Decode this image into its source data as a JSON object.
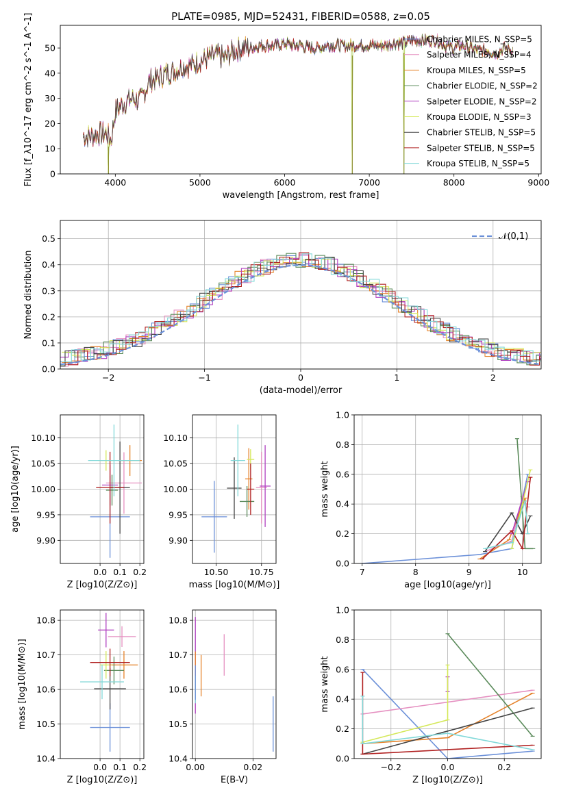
{
  "title": "PLATE=0985, MJD=52431, FIBERID=0588, z=0.05",
  "chart_data": [
    {
      "type": "line",
      "panel": "spectrum",
      "xlabel": "wavelength [Angstrom, rest frame]",
      "ylabel": "Flux [f_λ10^-17 erg cm^-2 s^-1 A^-1]",
      "xlim": [
        3350,
        9030
      ],
      "ylim": [
        0,
        59
      ],
      "xticks": [
        4000,
        5000,
        6000,
        7000,
        8000,
        9000
      ],
      "yticks": [
        0,
        10,
        20,
        30,
        40,
        50
      ],
      "grid": false,
      "legend_position": "right",
      "legend": [
        "Chabrier MILES, N_SSP=5",
        "Salpeter MILES, N_SSP=4",
        "Kroupa MILES, N_SSP=5",
        "Chabrier ELODIE, N_SSP=2",
        "Salpeter ELODIE, N_SSP=2",
        "Kroupa ELODIE, N_SSP=3",
        "Chabrier STELIB, N_SSP=5",
        "Salpeter STELIB, N_SSP=5",
        "Kroupa STELIB, N_SSP=5"
      ],
      "colors": [
        "#6a8fd8",
        "#e58fc0",
        "#e5822a",
        "#5a8a5a",
        "#b040c0",
        "#d4e858",
        "#444444",
        "#b02020",
        "#80d8d8"
      ],
      "continuum": [
        [
          3620,
          15
        ],
        [
          3700,
          15
        ],
        [
          3800,
          16
        ],
        [
          3900,
          16
        ],
        [
          3950,
          13
        ],
        [
          4000,
          25
        ],
        [
          4100,
          28
        ],
        [
          4200,
          30
        ],
        [
          4300,
          29
        ],
        [
          4400,
          37
        ],
        [
          4500,
          38
        ],
        [
          4600,
          40
        ],
        [
          4700,
          41
        ],
        [
          4800,
          43
        ],
        [
          4900,
          43
        ],
        [
          5000,
          45
        ],
        [
          5100,
          46
        ],
        [
          5200,
          47
        ],
        [
          5300,
          46
        ],
        [
          5400,
          49
        ],
        [
          5500,
          50
        ],
        [
          5600,
          50
        ],
        [
          5700,
          51
        ],
        [
          5800,
          51
        ],
        [
          5900,
          51
        ],
        [
          6000,
          52
        ],
        [
          6100,
          51
        ],
        [
          6200,
          51
        ],
        [
          6300,
          50
        ],
        [
          6400,
          50
        ],
        [
          6500,
          51
        ],
        [
          6600,
          51
        ],
        [
          6700,
          51
        ],
        [
          6800,
          51
        ],
        [
          6900,
          51
        ],
        [
          7000,
          51
        ],
        [
          7100,
          51
        ],
        [
          7200,
          51
        ],
        [
          7300,
          52
        ],
        [
          7400,
          52
        ],
        [
          7500,
          53
        ],
        [
          7600,
          53
        ],
        [
          7700,
          53
        ],
        [
          7800,
          53
        ],
        [
          7900,
          51
        ],
        [
          8000,
          50
        ],
        [
          8100,
          51
        ],
        [
          8200,
          50
        ],
        [
          8300,
          49
        ],
        [
          8400,
          49
        ],
        [
          8500,
          48
        ],
        [
          8600,
          50
        ],
        [
          8700,
          49
        ]
      ],
      "drops": [
        [
          3920,
          0
        ],
        [
          6800,
          0
        ],
        [
          7410,
          0
        ]
      ]
    },
    {
      "type": "line",
      "panel": "residual-histogram",
      "xlabel": "(data-model)/error",
      "ylabel": "Normed distribution",
      "xlim": [
        -2.5,
        2.5
      ],
      "ylim": [
        0,
        0.57
      ],
      "xticks": [
        -2,
        -1,
        0,
        1,
        2
      ],
      "yticks": [
        0.0,
        0.1,
        0.2,
        0.3,
        0.4,
        0.5
      ],
      "grid": true,
      "legend_position": "top-right",
      "legend": [
        "𝒩(0,1)"
      ],
      "reference_curve": "standard normal, dashed"
    },
    {
      "type": "scatter",
      "panel": "age-vs-Z",
      "xlabel": "Z [log10(Z/Z⊙)]",
      "ylabel": "age [log10(age/yr)]",
      "xlim": [
        -0.2,
        0.22
      ],
      "ylim": [
        9.855,
        10.145
      ],
      "xticks": [
        0.0,
        0.1,
        0.2
      ],
      "yticks": [
        9.9,
        9.95,
        10.0,
        10.05,
        10.1
      ],
      "grid": true,
      "points": [
        [
          0.05,
          9.946,
          0.1,
          0.08
        ],
        [
          0.12,
          10.012,
          0.09,
          0.06
        ],
        [
          0.15,
          10.056,
          0.06,
          0.03
        ],
        [
          0.06,
          9.998,
          0.03,
          0.03
        ],
        [
          0.05,
          10.008,
          0.04,
          0.04
        ],
        [
          0.03,
          10.056,
          0.04,
          0.02
        ],
        [
          0.1,
          10.003,
          0.05,
          0.09
        ],
        [
          0.05,
          10.003,
          0.07,
          0.07
        ],
        [
          0.07,
          10.056,
          0.13,
          0.07
        ]
      ]
    },
    {
      "type": "scatter",
      "panel": "age-vs-mass",
      "xlabel": "mass [log10(M/M⊙)]",
      "ylabel": "",
      "xlim": [
        10.37,
        10.83
      ],
      "ylim": [
        9.855,
        10.145
      ],
      "xticks": [
        10.5,
        10.75
      ],
      "yticks": [
        9.9,
        9.95,
        10.0,
        10.05,
        10.1
      ],
      "grid": true,
      "points": [
        [
          10.49,
          9.946,
          0.07,
          0.07
        ],
        [
          10.75,
          10.003,
          0.03,
          0.07
        ],
        [
          10.68,
          10.02,
          0.02,
          0.06
        ],
        [
          10.67,
          9.976,
          0.04,
          0.03
        ],
        [
          10.77,
          10.006,
          0.03,
          0.08
        ],
        [
          10.69,
          10.058,
          0.02,
          0.02
        ],
        [
          10.6,
          10.002,
          0.04,
          0.06
        ],
        [
          10.69,
          10.0,
          0.02,
          0.05
        ],
        [
          10.62,
          10.056,
          0.04,
          0.07
        ]
      ]
    },
    {
      "type": "line",
      "panel": "mass-weight-vs-age",
      "xlabel": "age [log10(age/yr)]",
      "ylabel": "mass weight",
      "xlim": [
        6.85,
        10.35
      ],
      "ylim": [
        0,
        1.0
      ],
      "xticks": [
        7,
        8,
        9,
        10
      ],
      "yticks": [
        0.0,
        0.2,
        0.4,
        0.6,
        0.8,
        1.0
      ],
      "grid": true
    },
    {
      "type": "scatter",
      "panel": "mass-vs-Z",
      "xlabel": "Z [log10(Z/Z⊙)]",
      "ylabel": "mass [log10(M/M⊙)]",
      "xlim": [
        -0.2,
        0.22
      ],
      "ylim": [
        10.4,
        10.83
      ],
      "xticks": [
        0.0,
        0.1,
        0.2
      ],
      "yticks": [
        10.4,
        10.5,
        10.6,
        10.7,
        10.8
      ],
      "grid": true,
      "points": [
        [
          0.05,
          10.49,
          0.1,
          0.07
        ],
        [
          0.11,
          10.753,
          0.07,
          0.03
        ],
        [
          0.12,
          10.671,
          0.07,
          0.04
        ],
        [
          0.07,
          10.655,
          0.05,
          0.04
        ],
        [
          0.03,
          10.772,
          0.04,
          0.05
        ],
        [
          0.03,
          10.671,
          0.03,
          0.04
        ],
        [
          0.05,
          10.602,
          0.08,
          0.06
        ],
        [
          0.05,
          10.678,
          0.1,
          0.04
        ],
        [
          0.01,
          10.622,
          0.11,
          0.05
        ]
      ]
    },
    {
      "type": "scatter",
      "panel": "mass-vs-EBV",
      "xlabel": "E(B-V)",
      "ylabel": "",
      "xlim": [
        -0.001,
        0.028
      ],
      "ylim": [
        10.4,
        10.83
      ],
      "xticks": [
        0.0,
        0.02
      ],
      "yticks": [
        10.4,
        10.5,
        10.6,
        10.7,
        10.8
      ],
      "grid": true
    },
    {
      "type": "line",
      "panel": "mass-weight-vs-Z",
      "xlabel": "Z [log10(Z/Z⊙)]",
      "ylabel": "mass weight",
      "xlim": [
        -0.33,
        0.33
      ],
      "ylim": [
        0,
        1.0
      ],
      "xticks": [
        -0.2,
        0.0,
        0.2
      ],
      "yticks": [
        0.0,
        0.2,
        0.4,
        0.6,
        0.8,
        1.0
      ],
      "grid": true
    }
  ]
}
